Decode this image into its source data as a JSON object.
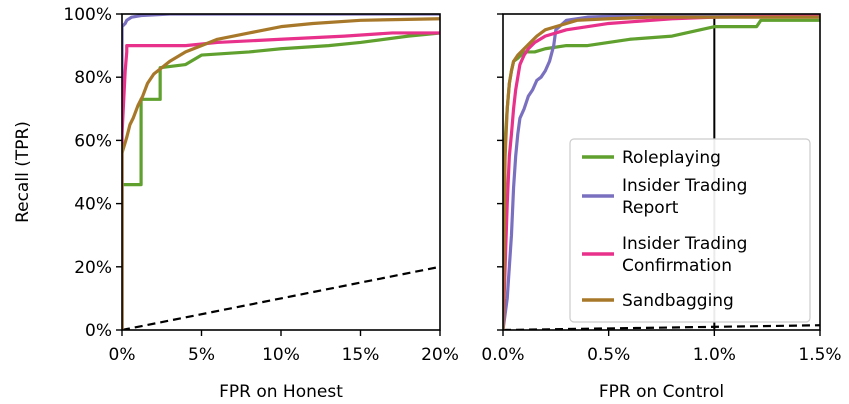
{
  "chart_data": [
    {
      "type": "line",
      "xlabel": "FPR on Honest",
      "ylabel": "Recall (TPR)",
      "xlim": [
        0,
        20
      ],
      "ylim": [
        0,
        100
      ],
      "x_ticks": [
        0,
        5,
        10,
        15,
        20
      ],
      "x_tick_labels": [
        "0%",
        "5%",
        "10%",
        "15%",
        "20%"
      ],
      "y_ticks": [
        0,
        20,
        40,
        60,
        80,
        100
      ],
      "y_tick_labels": [
        "0%",
        "20%",
        "40%",
        "60%",
        "80%",
        "100%"
      ],
      "series": [
        {
          "name": "Roleplaying",
          "color": "#5fa02e",
          "x": [
            0,
            0,
            0.6,
            0.6,
            1.2,
            1.2,
            2.4,
            2.4,
            4.0,
            5.0,
            8.0,
            10.0,
            13.0,
            15.0,
            18.0,
            20.0
          ],
          "y": [
            0,
            46,
            46,
            46,
            46,
            73,
            73,
            83,
            84,
            87,
            88,
            89,
            90,
            91,
            93,
            94
          ]
        },
        {
          "name": "Insider Trading Report",
          "color": "#7a70c0",
          "x": [
            0,
            0,
            0.2,
            0.3,
            0.6,
            1.2,
            3.0,
            20.0
          ],
          "y": [
            0,
            96,
            97,
            98,
            99,
            99.5,
            100,
            100
          ]
        },
        {
          "name": "Insider Trading Confirmation",
          "color": "#e8318a",
          "x": [
            0,
            0,
            0.1,
            0.2,
            0.3,
            0.3,
            4.0,
            6.0,
            10.0,
            14.0,
            17.0,
            20.0
          ],
          "y": [
            0,
            62,
            72,
            82,
            88,
            90,
            90,
            91,
            92,
            93,
            94,
            94
          ]
        },
        {
          "name": "Sandbagging",
          "color": "#a8782a",
          "x": [
            0,
            0,
            0.3,
            0.5,
            0.7,
            1.0,
            1.3,
            1.6,
            2.0,
            2.5,
            3.0,
            4.0,
            5.0,
            6.0,
            8.0,
            10.0,
            12.0,
            15.0,
            20.0
          ],
          "y": [
            0,
            56,
            61,
            65,
            67,
            71,
            74,
            78,
            81,
            83,
            85,
            88,
            90,
            92,
            94,
            96,
            97,
            98,
            98.5
          ]
        }
      ],
      "chance_line": {
        "x": [
          0,
          20
        ],
        "y": [
          0,
          20
        ],
        "style": "dashed"
      }
    },
    {
      "type": "line",
      "xlabel": "FPR on Control",
      "ylabel": "",
      "xlim": [
        0,
        1.5
      ],
      "ylim": [
        0,
        100
      ],
      "x_ticks": [
        0,
        0.5,
        1.0,
        1.5
      ],
      "x_tick_labels": [
        "0.0%",
        "0.5%",
        "1.0%",
        "1.5%"
      ],
      "vertical_reference": 1.0,
      "legend_placement": "center-right",
      "series": [
        {
          "name": "Roleplaying",
          "color": "#5fa02e",
          "x": [
            0,
            0.01,
            0.02,
            0.03,
            0.04,
            0.05,
            0.07,
            0.1,
            0.15,
            0.2,
            0.3,
            0.4,
            0.5,
            0.6,
            0.8,
            1.0,
            1.2,
            1.22,
            1.5
          ],
          "y": [
            0,
            60,
            70,
            78,
            82,
            85,
            86,
            88,
            88,
            89,
            90,
            90,
            91,
            92,
            93,
            96,
            96,
            98,
            98
          ]
        },
        {
          "name": "Insider Trading Report",
          "color": "#7a70c0",
          "x": [
            0,
            0.02,
            0.04,
            0.05,
            0.06,
            0.07,
            0.08,
            0.1,
            0.12,
            0.14,
            0.16,
            0.18,
            0.2,
            0.22,
            0.24,
            0.25,
            0.3,
            0.4,
            0.6,
            1.5
          ],
          "y": [
            0,
            10,
            30,
            45,
            55,
            62,
            67,
            70,
            74,
            76,
            79,
            80,
            82,
            85,
            90,
            95,
            98,
            99,
            99.5,
            100
          ]
        },
        {
          "name": "Insider Trading Confirmation",
          "color": "#e8318a",
          "x": [
            0,
            0.01,
            0.02,
            0.03,
            0.04,
            0.05,
            0.06,
            0.07,
            0.08,
            0.1,
            0.12,
            0.15,
            0.2,
            0.3,
            0.5,
            0.8,
            1.0,
            1.5
          ],
          "y": [
            0,
            20,
            40,
            55,
            62,
            70,
            76,
            80,
            84,
            87,
            89,
            91,
            93,
            95,
            97,
            98.5,
            99,
            99.5
          ]
        },
        {
          "name": "Sandbagging",
          "color": "#a8782a",
          "x": [
            0,
            0.01,
            0.02,
            0.03,
            0.04,
            0.05,
            0.07,
            0.1,
            0.13,
            0.16,
            0.2,
            0.25,
            0.3,
            0.35,
            0.5,
            0.7,
            1.0,
            1.5
          ],
          "y": [
            0,
            55,
            70,
            78,
            82,
            85,
            87,
            89,
            91,
            93,
            95,
            96,
            97,
            98,
            98.5,
            99,
            99,
            99
          ]
        }
      ],
      "chance_line": {
        "x": [
          0,
          1.5
        ],
        "y": [
          0,
          1.5
        ],
        "style": "dashed"
      }
    }
  ],
  "legend": {
    "entries": [
      {
        "label_lines": [
          "Roleplaying"
        ],
        "color": "#5fa02e"
      },
      {
        "label_lines": [
          "Insider Trading",
          "Report"
        ],
        "color": "#7a70c0"
      },
      {
        "label_lines": [
          "Insider Trading",
          "Confirmation"
        ],
        "color": "#e8318a"
      },
      {
        "label_lines": [
          "Sandbagging"
        ],
        "color": "#a8782a"
      }
    ]
  }
}
